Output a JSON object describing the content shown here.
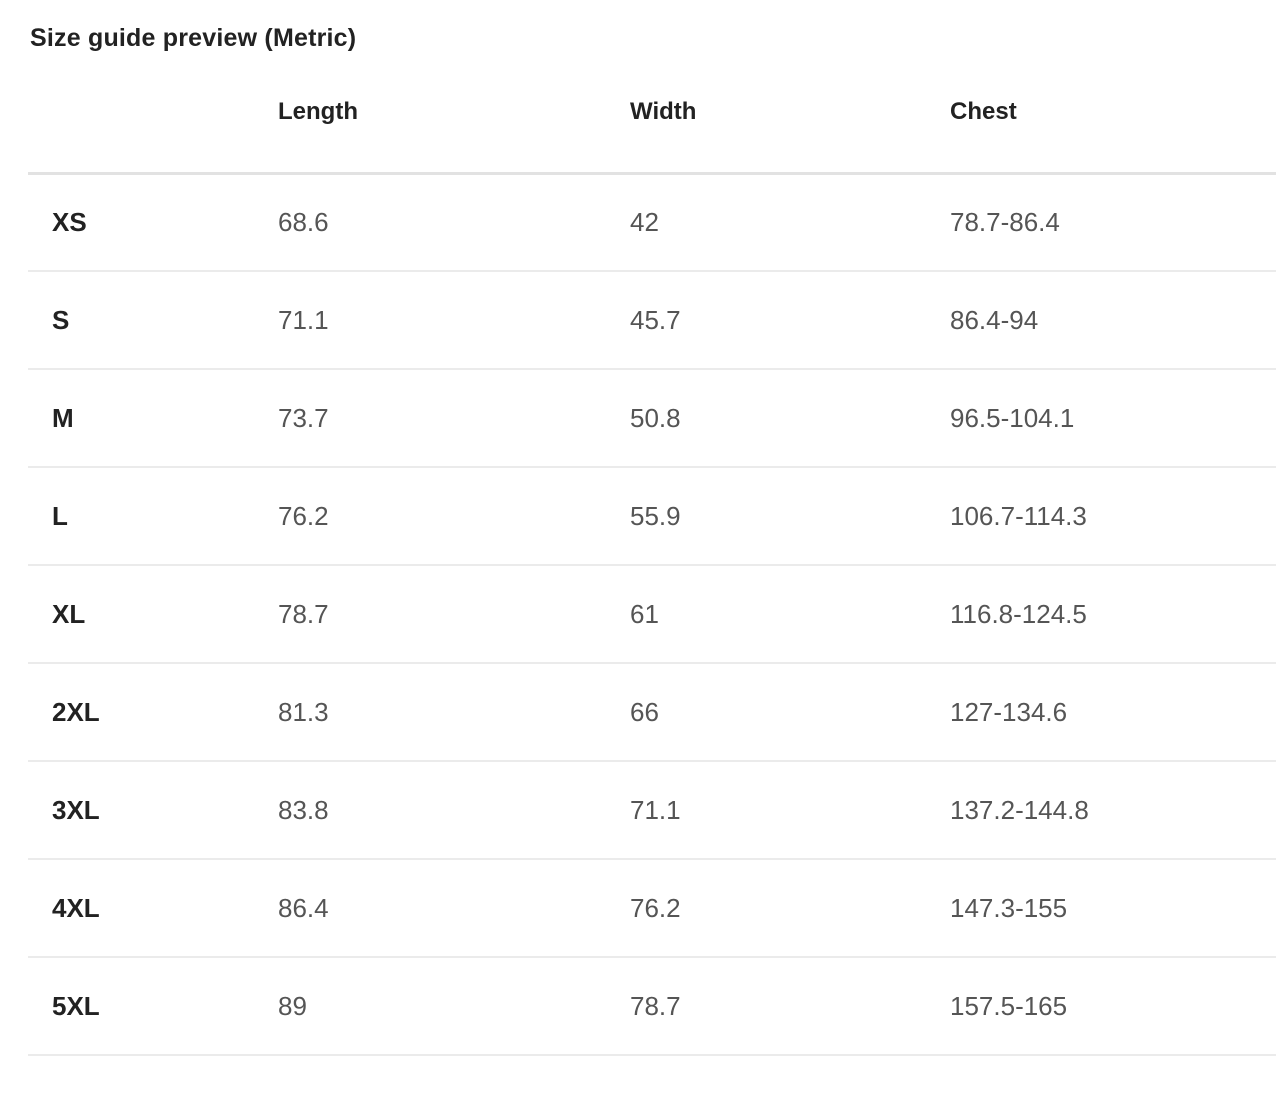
{
  "title": "Size guide preview (Metric)",
  "table": {
    "columns": [
      "",
      "Length",
      "Width",
      "Chest"
    ],
    "rows": [
      {
        "size": "XS",
        "length": "68.6",
        "width": "42",
        "chest": "78.7-86.4"
      },
      {
        "size": "S",
        "length": "71.1",
        "width": "45.7",
        "chest": "86.4-94"
      },
      {
        "size": "M",
        "length": "73.7",
        "width": "50.8",
        "chest": "96.5-104.1"
      },
      {
        "size": "L",
        "length": "76.2",
        "width": "55.9",
        "chest": "106.7-114.3"
      },
      {
        "size": "XL",
        "length": "78.7",
        "width": "61",
        "chest": "116.8-124.5"
      },
      {
        "size": "2XL",
        "length": "81.3",
        "width": "66",
        "chest": "127-134.6"
      },
      {
        "size": "3XL",
        "length": "83.8",
        "width": "71.1",
        "chest": "137.2-144.8"
      },
      {
        "size": "4XL",
        "length": "86.4",
        "width": "76.2",
        "chest": "147.3-155"
      },
      {
        "size": "5XL",
        "length": "89",
        "width": "78.7",
        "chest": "157.5-165"
      }
    ]
  }
}
